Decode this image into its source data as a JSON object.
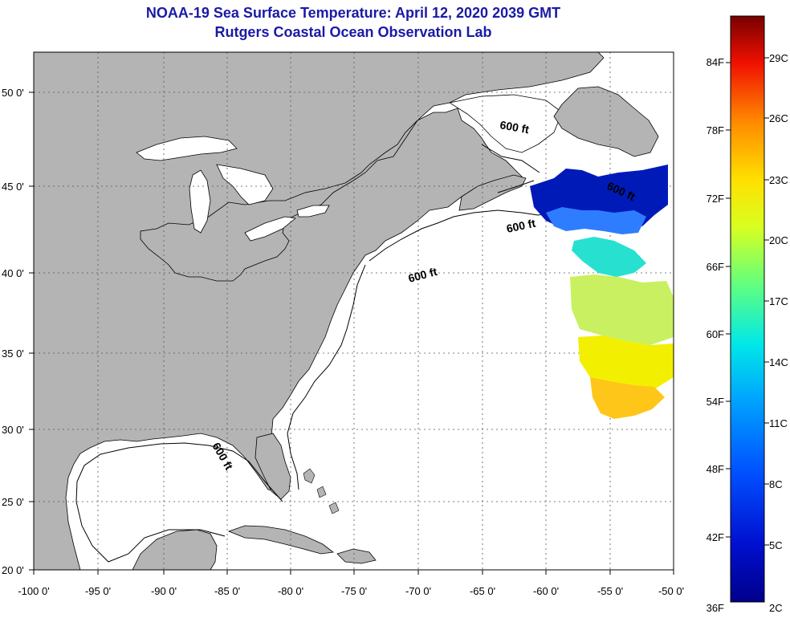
{
  "header": {
    "title_line1": "NOAA-19 Sea Surface Temperature:  April 12, 2020 2039 GMT",
    "title_line2": "Rutgers Coastal Ocean Observation Lab"
  },
  "map": {
    "lon_ticks": [
      "-100 0'",
      "-95 0'",
      "-90 0'",
      "-85 0'",
      "-80 0'",
      "-75 0'",
      "-70 0'",
      "-65 0'",
      "-60 0'",
      "-55 0'",
      "-50 0'"
    ],
    "lat_ticks": [
      "50 0'",
      "45 0'",
      "40 0'",
      "35 0'",
      "30 0'",
      "25 0'",
      "20 0'"
    ],
    "contour_labels": [
      "600 ft",
      "600 ft",
      "600 ft",
      "600 ft",
      "600 ft"
    ],
    "colors": {
      "land": "#b4b4b4",
      "ocean": "#ffffff",
      "grid": "#555555"
    }
  },
  "colorbar": {
    "fahrenheit_labels": [
      "84F",
      "78F",
      "72F",
      "66F",
      "60F",
      "54F",
      "48F",
      "42F",
      "36F"
    ],
    "celsius_labels": [
      "29C",
      "26C",
      "23C",
      "20C",
      "17C",
      "14C",
      "11C",
      "8C",
      "5C",
      "2C"
    ],
    "gradient_colors": [
      "#7a0000",
      "#e00000",
      "#ff6a00",
      "#ffd000",
      "#eaff00",
      "#7dff5a",
      "#00f0e0",
      "#009cff",
      "#0030ff",
      "#00008a"
    ]
  }
}
